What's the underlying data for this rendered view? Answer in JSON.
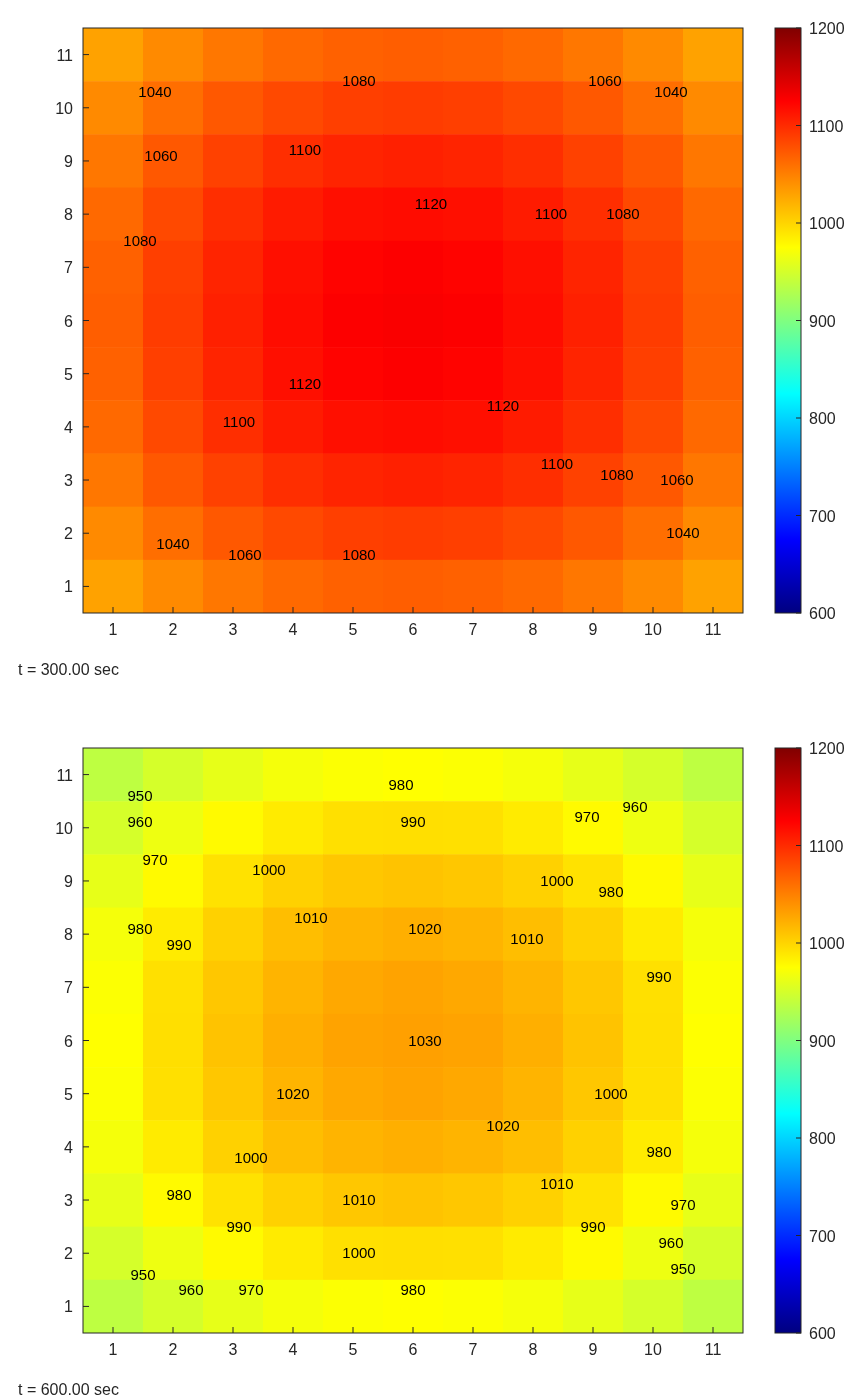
{
  "chart_data": [
    {
      "type": "heatmap",
      "categories": [
        "1",
        "2",
        "3",
        "4",
        "5",
        "6",
        "7",
        "8",
        "9",
        "10",
        "11"
      ],
      "y_categories": [
        "11",
        "10",
        "9",
        "8",
        "7",
        "6",
        "5",
        "4",
        "3",
        "2",
        "1"
      ],
      "cells": [
        [
          1030,
          1044,
          1055,
          1063,
          1068,
          1070,
          1068,
          1063,
          1055,
          1044,
          1030
        ],
        [
          1044,
          1060,
          1073,
          1082,
          1088,
          1090,
          1088,
          1082,
          1073,
          1060,
          1044
        ],
        [
          1055,
          1073,
          1087,
          1098,
          1104,
          1106,
          1104,
          1098,
          1087,
          1073,
          1055
        ],
        [
          1063,
          1082,
          1098,
          1109,
          1116,
          1118,
          1116,
          1109,
          1098,
          1082,
          1063
        ],
        [
          1068,
          1088,
          1104,
          1116,
          1123,
          1126,
          1123,
          1116,
          1104,
          1088,
          1068
        ],
        [
          1070,
          1090,
          1106,
          1118,
          1126,
          1128,
          1126,
          1118,
          1106,
          1090,
          1070
        ],
        [
          1068,
          1088,
          1104,
          1116,
          1123,
          1126,
          1123,
          1116,
          1104,
          1088,
          1068
        ],
        [
          1063,
          1082,
          1098,
          1109,
          1116,
          1118,
          1116,
          1109,
          1098,
          1082,
          1063
        ],
        [
          1055,
          1073,
          1087,
          1098,
          1104,
          1106,
          1104,
          1098,
          1087,
          1073,
          1055
        ],
        [
          1044,
          1060,
          1073,
          1082,
          1088,
          1090,
          1088,
          1082,
          1073,
          1060,
          1044
        ],
        [
          1030,
          1044,
          1055,
          1063,
          1068,
          1070,
          1068,
          1063,
          1055,
          1044,
          1030
        ]
      ],
      "clim": [
        600,
        1200
      ],
      "cticks": [
        600,
        700,
        800,
        900,
        1000,
        1100,
        1200
      ],
      "annotations": [
        "t = 300.00 sec",
        "1040",
        "1080",
        "1060",
        "1040",
        "1060",
        "1100",
        "1080",
        "1120",
        "1100",
        "1080",
        "1120",
        "1100",
        "1120",
        "1100",
        "1080",
        "1060",
        "1040",
        "1040",
        "1060",
        "1080"
      ]
    },
    {
      "type": "heatmap",
      "categories": [
        "1",
        "2",
        "3",
        "4",
        "5",
        "6",
        "7",
        "8",
        "9",
        "10",
        "11"
      ],
      "y_categories": [
        "11",
        "10",
        "9",
        "8",
        "7",
        "6",
        "5",
        "4",
        "3",
        "2",
        "1"
      ],
      "cells": [
        [
          937,
          950,
          961,
          969,
          973,
          975,
          973,
          969,
          961,
          950,
          937
        ],
        [
          950,
          965,
          978,
          987,
          993,
          994,
          993,
          987,
          978,
          965,
          950
        ],
        [
          961,
          978,
          992,
          1002,
          1008,
          1010,
          1008,
          1002,
          992,
          978,
          961
        ],
        [
          969,
          987,
          1002,
          1013,
          1019,
          1022,
          1019,
          1013,
          1002,
          987,
          969
        ],
        [
          973,
          993,
          1008,
          1019,
          1026,
          1029,
          1026,
          1019,
          1008,
          993,
          973
        ],
        [
          975,
          994,
          1010,
          1022,
          1029,
          1031,
          1029,
          1022,
          1010,
          994,
          975
        ],
        [
          973,
          993,
          1008,
          1019,
          1026,
          1029,
          1026,
          1019,
          1008,
          993,
          973
        ],
        [
          969,
          987,
          1002,
          1013,
          1019,
          1022,
          1019,
          1013,
          1002,
          987,
          969
        ],
        [
          961,
          978,
          992,
          1002,
          1008,
          1010,
          1008,
          1002,
          992,
          978,
          961
        ],
        [
          950,
          965,
          978,
          987,
          993,
          994,
          993,
          987,
          978,
          965,
          950
        ],
        [
          937,
          950,
          961,
          969,
          973,
          975,
          973,
          969,
          961,
          950,
          937
        ]
      ],
      "clim": [
        600,
        1200
      ],
      "cticks": [
        600,
        700,
        800,
        900,
        1000,
        1100,
        1200
      ],
      "annotations": [
        "t = 600.00 sec",
        "980",
        "990",
        "970",
        "960",
        "950",
        "960",
        "970",
        "980",
        "990",
        "1000",
        "1010",
        "1020",
        "1010",
        "1000",
        "980",
        "990",
        "1030",
        "1020",
        "1020",
        "1000",
        "1000",
        "1010",
        "1010",
        "980",
        "970",
        "960",
        "950",
        "980",
        "990",
        "1000",
        "990",
        "950",
        "960",
        "970",
        "980"
      ]
    }
  ]
}
